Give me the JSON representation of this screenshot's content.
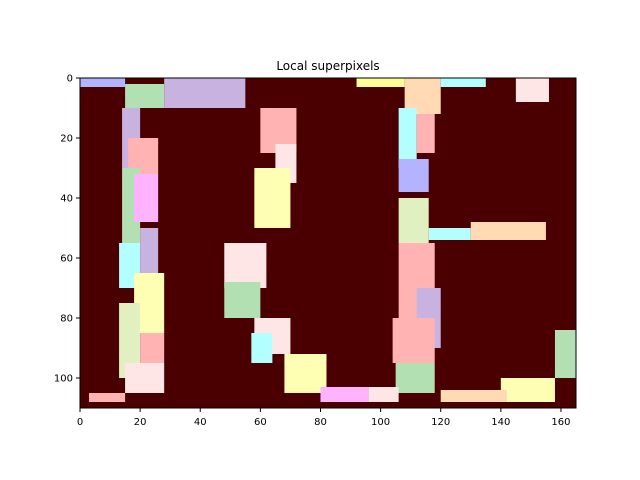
{
  "chart_data": {
    "type": "heatmap",
    "title": "Local superpixels",
    "xlabel": "",
    "ylabel": "",
    "xlim": [
      0,
      165
    ],
    "ylim": [
      110,
      0
    ],
    "x_ticks": [
      0,
      20,
      40,
      60,
      80,
      100,
      120,
      140,
      160
    ],
    "y_ticks": [
      0,
      20,
      40,
      60,
      80,
      100
    ],
    "image_shape": [
      110,
      165
    ],
    "background_color": "#4a0000",
    "grid": false,
    "description": "",
    "regions": [
      {
        "color": "#b3b3ff",
        "x": [
          0,
          15
        ],
        "y": [
          0,
          3
        ]
      },
      {
        "color": "#b3e0b3",
        "x": [
          15,
          28
        ],
        "y": [
          2,
          10
        ]
      },
      {
        "color": "#c8b3e0",
        "x": [
          28,
          55
        ],
        "y": [
          0,
          10
        ]
      },
      {
        "color": "#ffb3b3",
        "x": [
          60,
          72
        ],
        "y": [
          10,
          25
        ]
      },
      {
        "color": "#ffe6e6",
        "x": [
          65,
          72
        ],
        "y": [
          22,
          35
        ]
      },
      {
        "color": "#ffffb3",
        "x": [
          58,
          70
        ],
        "y": [
          30,
          50
        ]
      },
      {
        "color": "#ffff99",
        "x": [
          92,
          108
        ],
        "y": [
          0,
          3
        ]
      },
      {
        "color": "#ffdab3",
        "x": [
          108,
          120
        ],
        "y": [
          0,
          12
        ]
      },
      {
        "color": "#b3ffff",
        "x": [
          120,
          135
        ],
        "y": [
          0,
          3
        ]
      },
      {
        "color": "#ffe6e6",
        "x": [
          145,
          156
        ],
        "y": [
          0,
          8
        ]
      },
      {
        "color": "#c8b3e0",
        "x": [
          14,
          20
        ],
        "y": [
          10,
          30
        ]
      },
      {
        "color": "#ffb3b3",
        "x": [
          16,
          26
        ],
        "y": [
          20,
          32
        ]
      },
      {
        "color": "#b3e0b3",
        "x": [
          14,
          20
        ],
        "y": [
          30,
          55
        ]
      },
      {
        "color": "#ffb3ff",
        "x": [
          18,
          26
        ],
        "y": [
          32,
          48
        ]
      },
      {
        "color": "#b3ffff",
        "x": [
          13,
          20
        ],
        "y": [
          55,
          70
        ]
      },
      {
        "color": "#c8b3e0",
        "x": [
          20,
          26
        ],
        "y": [
          50,
          65
        ]
      },
      {
        "color": "#ffffb3",
        "x": [
          18,
          28
        ],
        "y": [
          65,
          85
        ]
      },
      {
        "color": "#e0f0c0",
        "x": [
          13,
          20
        ],
        "y": [
          75,
          100
        ]
      },
      {
        "color": "#ffb3b3",
        "x": [
          20,
          28
        ],
        "y": [
          85,
          95
        ]
      },
      {
        "color": "#ffe6e6",
        "x": [
          15,
          28
        ],
        "y": [
          95,
          105
        ]
      },
      {
        "color": "#ffb3b3",
        "x": [
          3,
          15
        ],
        "y": [
          105,
          108
        ]
      },
      {
        "color": "#b3ffff",
        "x": [
          106,
          112
        ],
        "y": [
          10,
          30
        ]
      },
      {
        "color": "#ffb3b3",
        "x": [
          112,
          118
        ],
        "y": [
          12,
          25
        ]
      },
      {
        "color": "#b3b3ff",
        "x": [
          106,
          116
        ],
        "y": [
          27,
          38
        ]
      },
      {
        "color": "#e0f0c0",
        "x": [
          106,
          116
        ],
        "y": [
          40,
          55
        ]
      },
      {
        "color": "#b3ffff",
        "x": [
          116,
          130
        ],
        "y": [
          50,
          54
        ]
      },
      {
        "color": "#ffdab3",
        "x": [
          130,
          155
        ],
        "y": [
          48,
          54
        ]
      },
      {
        "color": "#ffb3b3",
        "x": [
          106,
          118
        ],
        "y": [
          55,
          80
        ]
      },
      {
        "color": "#c8b3e0",
        "x": [
          112,
          120
        ],
        "y": [
          70,
          90
        ]
      },
      {
        "color": "#ffb3b3",
        "x": [
          104,
          118
        ],
        "y": [
          80,
          95
        ]
      },
      {
        "color": "#b3e0b3",
        "x": [
          105,
          118
        ],
        "y": [
          95,
          105
        ]
      },
      {
        "color": "#ffe6e6",
        "x": [
          48,
          62
        ],
        "y": [
          55,
          70
        ]
      },
      {
        "color": "#b3e0b3",
        "x": [
          48,
          60
        ],
        "y": [
          68,
          80
        ]
      },
      {
        "color": "#ffe6e6",
        "x": [
          58,
          70
        ],
        "y": [
          80,
          92
        ]
      },
      {
        "color": "#b3ffff",
        "x": [
          57,
          64
        ],
        "y": [
          85,
          95
        ]
      },
      {
        "color": "#ffffb3",
        "x": [
          68,
          82
        ],
        "y": [
          92,
          105
        ]
      },
      {
        "color": "#ffb3ff",
        "x": [
          80,
          96
        ],
        "y": [
          103,
          108
        ]
      },
      {
        "color": "#ffe6e6",
        "x": [
          96,
          106
        ],
        "y": [
          103,
          108
        ]
      },
      {
        "color": "#ffffb3",
        "x": [
          140,
          158
        ],
        "y": [
          100,
          108
        ]
      },
      {
        "color": "#ffdab3",
        "x": [
          120,
          142
        ],
        "y": [
          104,
          108
        ]
      },
      {
        "color": "#b3e0b3",
        "x": [
          158,
          165
        ],
        "y": [
          84,
          100
        ]
      }
    ]
  }
}
